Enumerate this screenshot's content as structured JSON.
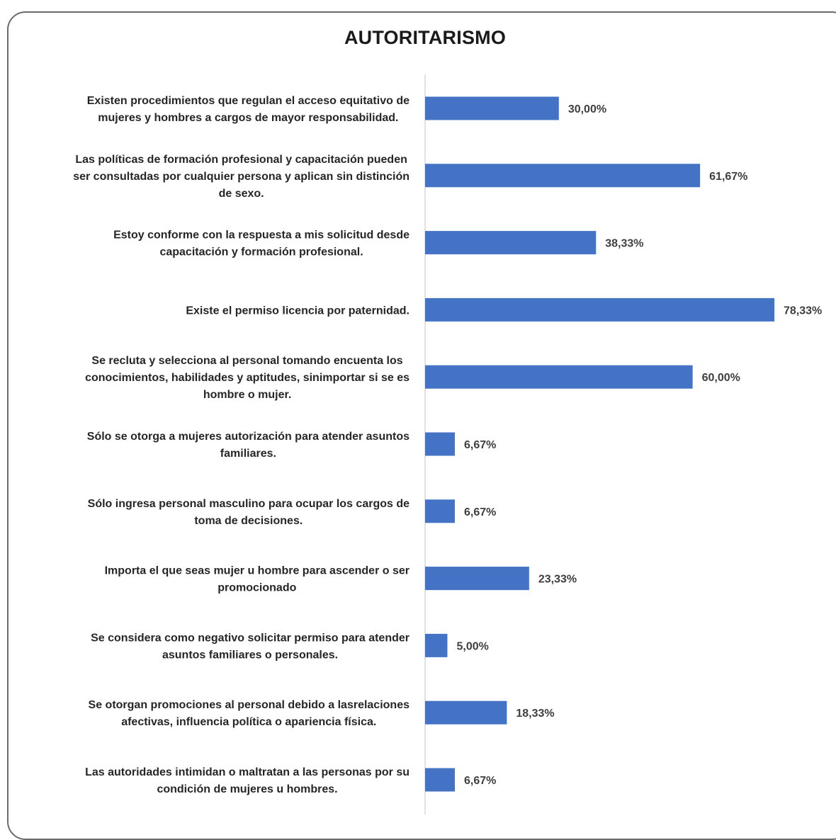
{
  "chart_data": {
    "type": "bar",
    "orientation": "horizontal",
    "title": "AUTORITARISMO",
    "xlabel": "",
    "ylabel": "",
    "grid": false,
    "legend": "none",
    "bar_color": "#4472C4",
    "xlim": [
      0,
      80
    ],
    "categories": [
      [
        "Existen procedimientos que regulan el acceso equitativo de",
        "mujeres y hombres a cargos de mayor responsabilidad."
      ],
      [
        "Las políticas de formación profesional y capacitación pueden",
        "ser consultadas por cualquier persona y aplican sin distinción",
        "de sexo."
      ],
      [
        "Estoy conforme con la respuesta a mis solicitud desde",
        "capacitación y formación profesional."
      ],
      [
        "Existe el permiso licencia por paternidad."
      ],
      [
        "Se recluta y selecciona al personal tomando encuenta los",
        "conocimientos, habilidades y aptitudes, sinimportar si se es",
        "hombre o mujer."
      ],
      [
        "Sólo se otorga a mujeres autorización para atender asuntos",
        "familiares."
      ],
      [
        "Sólo ingresa personal masculino para ocupar los cargos de",
        "toma de decisiones."
      ],
      [
        "Importa el que seas mujer u hombre para ascender o ser",
        "promocionado"
      ],
      [
        "Se considera como negativo solicitar permiso para atender",
        "asuntos familiares o personales."
      ],
      [
        "Se otorgan promociones al personal debido a lasrelaciones",
        "afectivas, influencia política o apariencia física."
      ],
      [
        "Las autoridades intimidan o maltratan a las personas por su",
        "condición de mujeres u hombres."
      ]
    ],
    "values": [
      30.0,
      61.67,
      38.33,
      78.33,
      60.0,
      6.67,
      6.67,
      23.33,
      5.0,
      18.33,
      6.67
    ],
    "data_labels": [
      "30,00%",
      "61,67%",
      "38,33%",
      "78,33%",
      "60,00%",
      "6,67%",
      "6,67%",
      "23,33%",
      "5,00%",
      "18,33%",
      "6,67%"
    ]
  }
}
